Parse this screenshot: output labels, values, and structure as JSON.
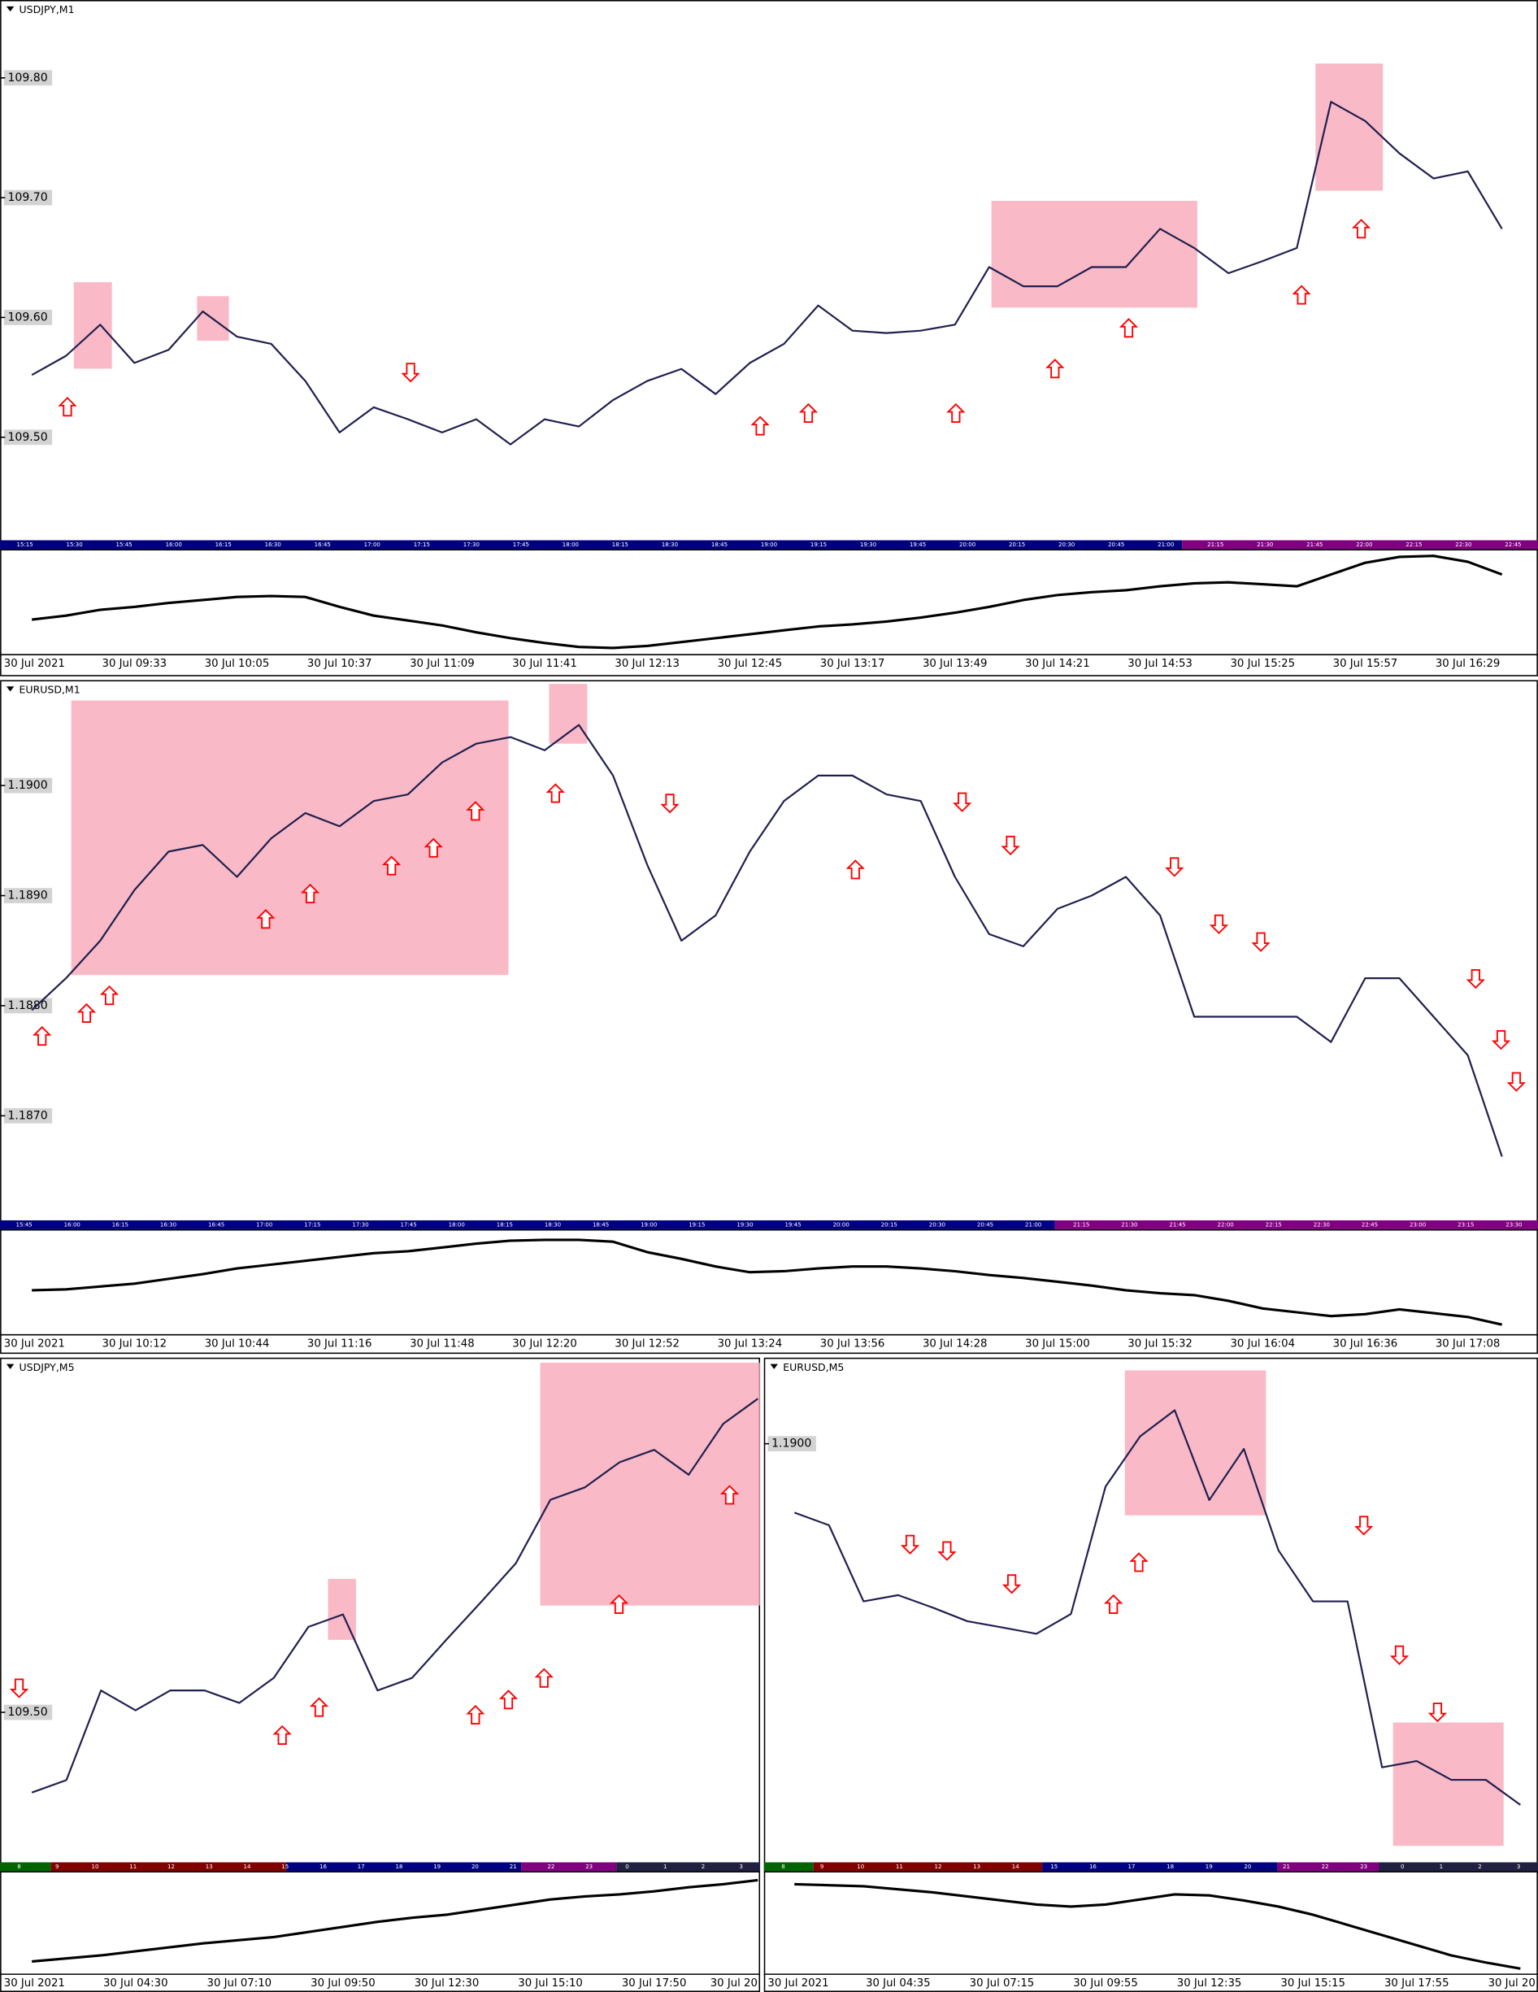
{
  "chart_data": [
    {
      "type": "line",
      "title": "USDJPY,M1",
      "categories": [
        "30 Jul 2021",
        null,
        null,
        "30 Jul 09:33",
        null,
        null,
        "30 Jul 10:05",
        null,
        null,
        "30 Jul 10:37",
        null,
        null,
        "30 Jul 11:09",
        null,
        null,
        "30 Jul 11:41",
        null,
        null,
        "30 Jul 12:13",
        null,
        null,
        "30 Jul 12:45",
        null,
        null,
        "30 Jul 13:17",
        null,
        null,
        "30 Jul 13:49",
        null,
        null,
        "30 Jul 14:21",
        null,
        null,
        "30 Jul 14:53",
        null,
        null,
        "30 Jul 15:25",
        null,
        null,
        "30 Jul 15:57",
        null,
        null,
        "30 Jul 16:29",
        null
      ],
      "series": [
        {
          "color": "#1f1f4f",
          "values": [
            109.552,
            109.568,
            109.594,
            109.562,
            109.573,
            109.605,
            109.584,
            109.578,
            109.547,
            109.504,
            109.525,
            109.515,
            109.504,
            109.515,
            109.494,
            109.515,
            109.509,
            109.531,
            109.547,
            109.557,
            109.536,
            109.562,
            109.578,
            109.61,
            109.589,
            109.587,
            109.589,
            109.594,
            109.642,
            109.626,
            109.626,
            109.642,
            109.642,
            109.674,
            109.658,
            109.637,
            109.647,
            109.658,
            109.78,
            109.764,
            109.737,
            109.716,
            109.722,
            109.674
          ]
        },
        {
          "color": "#000000",
          "axis": "y2",
          "values": [
            32,
            36,
            42,
            45,
            49,
            52,
            55,
            56,
            55,
            45,
            36,
            31,
            26,
            19,
            13,
            8,
            4,
            3,
            5,
            9,
            13,
            17,
            21,
            25,
            27,
            30,
            34,
            39,
            45,
            52,
            57,
            60,
            62,
            66,
            69,
            70,
            68,
            66,
            78,
            90,
            96,
            97,
            91,
            78
          ]
        }
      ],
      "ylim": [
        109.414,
        109.865
      ],
      "yticks": [
        {
          "value": 109.8,
          "label": "109.80"
        },
        {
          "value": 109.7,
          "label": "109.70"
        },
        {
          "value": 109.6,
          "label": "109.60"
        },
        {
          "value": 109.5,
          "label": "109.50"
        }
      ],
      "y2lim": [
        0,
        100
      ],
      "time_strip": [
        "15:15",
        "15:30",
        "15:45",
        "16:00",
        "16:15",
        "16:30",
        "16:45",
        "17:00",
        "17:15",
        "17:30",
        "17:45",
        "18:00",
        "18:15",
        "18:30",
        "18:45",
        "19:00",
        "19:15",
        "19:30",
        "19:45",
        "20:00",
        "20:15",
        "20:30",
        "20:45",
        "21:00",
        "21:15",
        "21:30",
        "21:45",
        "22:00",
        "22:15",
        "22:30",
        "22:45"
      ]
    },
    {
      "type": "line",
      "title": "EURUSD,M1",
      "categories": [
        "30 Jul 2021",
        null,
        null,
        "30 Jul 10:12",
        null,
        null,
        "30 Jul 10:44",
        null,
        null,
        "30 Jul 11:16",
        null,
        null,
        "30 Jul 11:48",
        null,
        null,
        "30 Jul 12:20",
        null,
        null,
        "30 Jul 12:52",
        null,
        null,
        "30 Jul 13:24",
        null,
        null,
        "30 Jul 13:56",
        null,
        null,
        "30 Jul 14:28",
        null,
        null,
        "30 Jul 15:00",
        null,
        null,
        "30 Jul 15:32",
        null,
        null,
        "30 Jul 16:04",
        null,
        null,
        "30 Jul 16:36",
        null,
        null,
        "30 Jul 17:08",
        null
      ],
      "series": [
        {
          "color": "#1f1f4f",
          "values": [
            1.18796,
            1.18825,
            1.18859,
            1.18905,
            1.1894,
            1.18946,
            1.18917,
            1.18952,
            1.18975,
            1.18963,
            1.18986,
            1.18992,
            1.19021,
            1.19038,
            1.19044,
            1.19032,
            1.19055,
            1.19009,
            1.18928,
            1.18859,
            1.18882,
            1.1894,
            1.18986,
            1.19009,
            1.19009,
            1.18992,
            1.18986,
            1.18917,
            1.18865,
            1.18854,
            1.18888,
            1.189,
            1.18917,
            1.18882,
            1.1879,
            1.1879,
            1.1879,
            1.1879,
            1.18767,
            1.18825,
            1.18825,
            1.1879,
            1.18755,
            1.18663
          ]
        },
        {
          "color": "#000000",
          "axis": "y2",
          "values": [
            40,
            41,
            44,
            47,
            52,
            57,
            63,
            67,
            71,
            75,
            79,
            81,
            85,
            89,
            92,
            93,
            93,
            91,
            80,
            73,
            65,
            59,
            60,
            63,
            65,
            65,
            63,
            60,
            56,
            53,
            49,
            45,
            40,
            37,
            35,
            29,
            21,
            17,
            13,
            15,
            20,
            16,
            12,
            4
          ]
        }
      ],
      "ylim": [
        1.18605,
        1.1909
      ],
      "yticks": [
        {
          "value": 1.19,
          "label": "1.1900"
        },
        {
          "value": 1.189,
          "label": "1.1890"
        },
        {
          "value": 1.188,
          "label": "1.1880"
        },
        {
          "value": 1.187,
          "label": "1.1870"
        }
      ],
      "y2lim": [
        0,
        100
      ],
      "time_strip": [
        "15:45",
        "16:00",
        "16:15",
        "16:30",
        "16:45",
        "17:00",
        "17:15",
        "17:30",
        "17:45",
        "18:00",
        "18:15",
        "18:30",
        "18:45",
        "19:00",
        "19:15",
        "19:30",
        "19:45",
        "20:00",
        "20:15",
        "20:30",
        "20:45",
        "21:00",
        "21:15",
        "21:30",
        "21:45",
        "22:00",
        "22:15",
        "22:30",
        "22:45",
        "23:00",
        "23:15",
        "23:30"
      ]
    },
    {
      "type": "line",
      "title": "USDJPY,M5",
      "categories": [
        "30 Jul 2021",
        null,
        null,
        "30 Jul 04:30",
        null,
        null,
        "30 Jul 07:10",
        null,
        null,
        "30 Jul 09:50",
        null,
        null,
        "30 Jul 12:30",
        null,
        null,
        "30 Jul 15:10",
        null,
        null,
        "30 Jul 17:50",
        null,
        null,
        "30 Jul 20"
      ],
      "series": [
        {
          "color": "#1f1f4f",
          "values": [
            109.423,
            109.435,
            109.521,
            109.502,
            109.521,
            109.521,
            109.509,
            109.533,
            109.582,
            109.594,
            109.521,
            109.533,
            109.57,
            109.606,
            109.643,
            109.704,
            109.716,
            109.74,
            109.752,
            109.728,
            109.777,
            109.801
          ]
        },
        {
          "color": "#000000",
          "axis": "y2",
          "values": [
            15,
            18,
            21,
            25,
            29,
            33,
            36,
            39,
            44,
            49,
            54,
            58,
            61,
            66,
            71,
            76,
            79,
            81,
            84,
            88,
            91,
            95
          ]
        }
      ],
      "ylim": [
        109.356,
        109.838
      ],
      "yticks": [
        {
          "value": 109.5,
          "label": "109.50"
        }
      ],
      "y2lim": [
        0,
        100
      ],
      "time_strip": [
        "8",
        "9",
        "10",
        "11",
        "12",
        "13",
        "14",
        "15",
        "16",
        "17",
        "18",
        "19",
        "20",
        "21",
        "22",
        "23",
        "0",
        "1",
        "2",
        "3"
      ]
    },
    {
      "type": "line",
      "title": "EURUSD,M5",
      "categories": [
        "30 Jul 2021",
        null,
        null,
        "30 Jul 04:35",
        null,
        null,
        "30 Jul 07:15",
        null,
        null,
        "30 Jul 09:55",
        null,
        null,
        "30 Jul 12:35",
        null,
        null,
        "30 Jul 15:15",
        null,
        null,
        "30 Jul 17:55",
        null,
        null,
        "30 Jul 20"
      ],
      "series": [
        {
          "color": "#1f1f4f",
          "values": [
            1.18934,
            1.18922,
            1.18849,
            1.18855,
            1.18843,
            1.1883,
            1.18824,
            1.18818,
            1.18837,
            1.18959,
            1.19007,
            1.19032,
            1.18946,
            1.18995,
            1.18898,
            1.18849,
            1.18849,
            1.1869,
            1.18696,
            1.18678,
            1.18678,
            1.18654
          ]
        },
        {
          "color": "#000000",
          "axis": "y2",
          "values": [
            91,
            90,
            89,
            86,
            83,
            79,
            75,
            71,
            69,
            71,
            76,
            81,
            80,
            75,
            69,
            61,
            51,
            41,
            31,
            21,
            14,
            8
          ]
        }
      ],
      "ylim": [
        1.18599,
        1.1908
      ],
      "yticks": [
        {
          "value": 1.19,
          "label": "1.1900"
        }
      ],
      "y2lim": [
        0,
        100
      ],
      "time_strip": [
        "8",
        "9",
        "10",
        "11",
        "12",
        "13",
        "14",
        "15",
        "16",
        "17",
        "18",
        "19",
        "20",
        "21",
        "22",
        "23",
        "0",
        "1",
        "2",
        "3"
      ]
    }
  ]
}
